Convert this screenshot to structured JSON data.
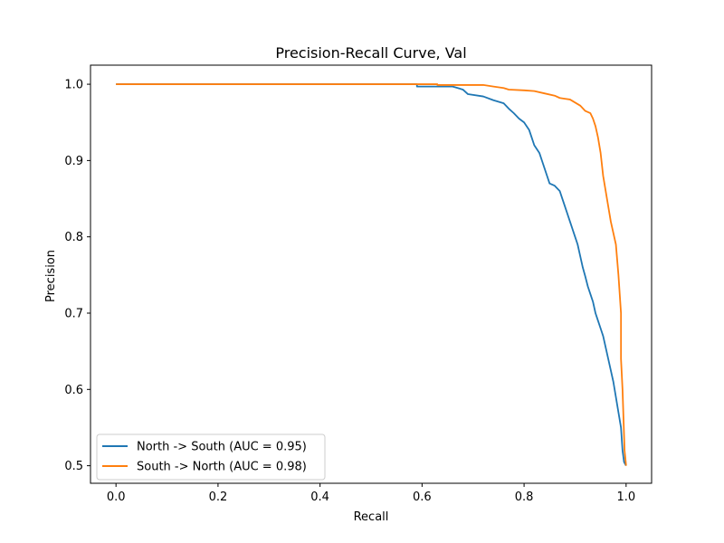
{
  "chart_data": {
    "type": "line",
    "title": "Precision-Recall Curve, Val",
    "xlabel": "Recall",
    "ylabel": "Precision",
    "xlim": [
      -0.05,
      1.05
    ],
    "ylim": [
      0.477,
      1.025
    ],
    "xticks": [
      0.0,
      0.2,
      0.4,
      0.6,
      0.8,
      1.0
    ],
    "xtick_labels": [
      "0.0",
      "0.2",
      "0.4",
      "0.6",
      "0.8",
      "1.0"
    ],
    "yticks": [
      0.5,
      0.6,
      0.7,
      0.8,
      0.9,
      1.0
    ],
    "ytick_labels": [
      "0.5",
      "0.6",
      "0.7",
      "0.8",
      "0.9",
      "1.0"
    ],
    "grid": false,
    "legend_position": "lower-left",
    "series": [
      {
        "name": "North -> South  (AUC = 0.95)",
        "color": "#1f77b4",
        "points": [
          [
            0.0,
            1.0
          ],
          [
            0.59,
            1.0
          ],
          [
            0.59,
            0.997
          ],
          [
            0.66,
            0.997
          ],
          [
            0.68,
            0.993
          ],
          [
            0.69,
            0.987
          ],
          [
            0.72,
            0.984
          ],
          [
            0.74,
            0.979
          ],
          [
            0.76,
            0.975
          ],
          [
            0.77,
            0.968
          ],
          [
            0.78,
            0.962
          ],
          [
            0.79,
            0.955
          ],
          [
            0.8,
            0.95
          ],
          [
            0.81,
            0.94
          ],
          [
            0.815,
            0.93
          ],
          [
            0.82,
            0.92
          ],
          [
            0.83,
            0.91
          ],
          [
            0.835,
            0.9
          ],
          [
            0.84,
            0.89
          ],
          [
            0.845,
            0.88
          ],
          [
            0.85,
            0.87
          ],
          [
            0.86,
            0.867
          ],
          [
            0.87,
            0.86
          ],
          [
            0.875,
            0.85
          ],
          [
            0.88,
            0.84
          ],
          [
            0.885,
            0.83
          ],
          [
            0.89,
            0.82
          ],
          [
            0.895,
            0.81
          ],
          [
            0.9,
            0.8
          ],
          [
            0.905,
            0.79
          ],
          [
            0.91,
            0.775
          ],
          [
            0.915,
            0.76
          ],
          [
            0.92,
            0.748
          ],
          [
            0.925,
            0.735
          ],
          [
            0.93,
            0.725
          ],
          [
            0.935,
            0.715
          ],
          [
            0.94,
            0.7
          ],
          [
            0.945,
            0.69
          ],
          [
            0.95,
            0.68
          ],
          [
            0.955,
            0.67
          ],
          [
            0.96,
            0.655
          ],
          [
            0.965,
            0.64
          ],
          [
            0.97,
            0.625
          ],
          [
            0.975,
            0.61
          ],
          [
            0.98,
            0.59
          ],
          [
            0.985,
            0.57
          ],
          [
            0.99,
            0.55
          ],
          [
            0.993,
            0.52
          ],
          [
            0.996,
            0.505
          ],
          [
            1.0,
            0.5
          ]
        ]
      },
      {
        "name": "South -> North  (AUC = 0.98)",
        "color": "#ff7f0e",
        "points": [
          [
            0.0,
            1.0
          ],
          [
            0.63,
            1.0
          ],
          [
            0.63,
            0.999
          ],
          [
            0.72,
            0.999
          ],
          [
            0.74,
            0.997
          ],
          [
            0.76,
            0.995
          ],
          [
            0.77,
            0.993
          ],
          [
            0.8,
            0.992
          ],
          [
            0.82,
            0.991
          ],
          [
            0.84,
            0.988
          ],
          [
            0.86,
            0.985
          ],
          [
            0.87,
            0.982
          ],
          [
            0.88,
            0.981
          ],
          [
            0.89,
            0.98
          ],
          [
            0.9,
            0.976
          ],
          [
            0.91,
            0.972
          ],
          [
            0.92,
            0.965
          ],
          [
            0.93,
            0.962
          ],
          [
            0.935,
            0.955
          ],
          [
            0.94,
            0.945
          ],
          [
            0.945,
            0.93
          ],
          [
            0.95,
            0.91
          ],
          [
            0.955,
            0.88
          ],
          [
            0.96,
            0.86
          ],
          [
            0.965,
            0.84
          ],
          [
            0.97,
            0.82
          ],
          [
            0.975,
            0.805
          ],
          [
            0.98,
            0.79
          ],
          [
            0.985,
            0.75
          ],
          [
            0.99,
            0.7
          ],
          [
            0.99,
            0.64
          ],
          [
            0.993,
            0.6
          ],
          [
            0.995,
            0.56
          ],
          [
            0.997,
            0.52
          ],
          [
            1.0,
            0.5
          ]
        ]
      }
    ]
  }
}
